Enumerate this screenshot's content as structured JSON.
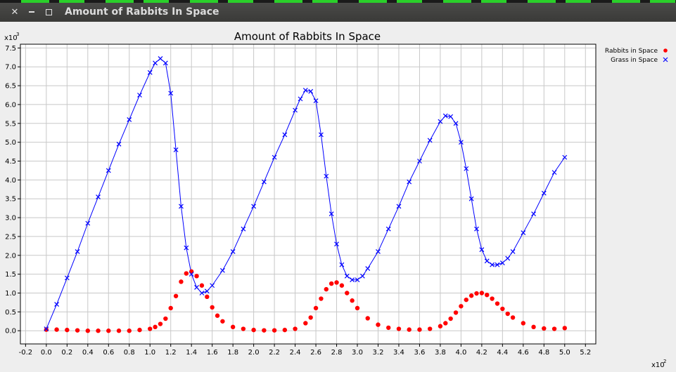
{
  "window": {
    "title": "Amount of Rabbits In Space",
    "close_icon": "close-icon",
    "minimize_icon": "minimize-icon",
    "maximize_icon": "maximize-icon"
  },
  "chart_data": {
    "type": "scatter",
    "title": "Amount of Rabbits In Space",
    "x_multiplier": "x10",
    "x_exponent": "2",
    "y_multiplier": "x10",
    "y_exponent": "3",
    "xlim": [
      -0.25,
      5.3
    ],
    "ylim": [
      -0.35,
      7.6
    ],
    "x_ticks": [
      "-0.2",
      "0.0",
      "0.2",
      "0.4",
      "0.6",
      "0.8",
      "1.0",
      "1.2",
      "1.4",
      "1.6",
      "1.8",
      "2.0",
      "2.2",
      "2.4",
      "2.6",
      "2.8",
      "3.0",
      "3.2",
      "3.4",
      "3.6",
      "3.8",
      "4.0",
      "4.2",
      "4.4",
      "4.6",
      "4.8",
      "5.0",
      "5.2"
    ],
    "y_ticks": [
      "0.0",
      "0.5",
      "1.0",
      "1.5",
      "2.0",
      "2.5",
      "3.0",
      "3.5",
      "4.0",
      "4.5",
      "5.0",
      "5.5",
      "6.0",
      "6.5",
      "7.0",
      "7.5"
    ],
    "grid": true,
    "legend_position": "right",
    "series": [
      {
        "name": "Rabbits in Space",
        "color": "#ff0000",
        "marker": "circle",
        "line": false,
        "x": [
          0.0,
          0.1,
          0.2,
          0.3,
          0.4,
          0.5,
          0.6,
          0.7,
          0.8,
          0.9,
          1.0,
          1.05,
          1.1,
          1.15,
          1.2,
          1.25,
          1.3,
          1.35,
          1.4,
          1.45,
          1.5,
          1.55,
          1.6,
          1.65,
          1.7,
          1.8,
          1.9,
          2.0,
          2.1,
          2.2,
          2.3,
          2.4,
          2.5,
          2.55,
          2.6,
          2.65,
          2.7,
          2.75,
          2.8,
          2.85,
          2.9,
          2.95,
          3.0,
          3.1,
          3.2,
          3.3,
          3.4,
          3.5,
          3.6,
          3.7,
          3.8,
          3.85,
          3.9,
          3.95,
          4.0,
          4.05,
          4.1,
          4.15,
          4.2,
          4.25,
          4.3,
          4.35,
          4.4,
          4.45,
          4.5,
          4.6,
          4.7,
          4.8,
          4.9,
          5.0
        ],
        "y": [
          0.03,
          0.03,
          0.02,
          0.01,
          0.0,
          0.0,
          0.0,
          0.0,
          0.0,
          0.02,
          0.05,
          0.1,
          0.18,
          0.32,
          0.6,
          0.92,
          1.3,
          1.52,
          1.57,
          1.45,
          1.2,
          0.9,
          0.62,
          0.4,
          0.25,
          0.1,
          0.05,
          0.02,
          0.01,
          0.01,
          0.02,
          0.05,
          0.2,
          0.35,
          0.6,
          0.85,
          1.1,
          1.25,
          1.28,
          1.2,
          1.0,
          0.8,
          0.6,
          0.33,
          0.16,
          0.08,
          0.05,
          0.03,
          0.03,
          0.05,
          0.12,
          0.2,
          0.32,
          0.48,
          0.65,
          0.82,
          0.93,
          0.99,
          1.0,
          0.95,
          0.85,
          0.72,
          0.58,
          0.45,
          0.35,
          0.2,
          0.1,
          0.06,
          0.05,
          0.07
        ]
      },
      {
        "name": "Grass in Space",
        "color": "#0000ff",
        "marker": "x",
        "line": true,
        "x": [
          0.0,
          0.1,
          0.2,
          0.3,
          0.4,
          0.5,
          0.6,
          0.7,
          0.8,
          0.9,
          1.0,
          1.05,
          1.1,
          1.15,
          1.2,
          1.25,
          1.3,
          1.35,
          1.4,
          1.45,
          1.5,
          1.55,
          1.6,
          1.7,
          1.8,
          1.9,
          2.0,
          2.1,
          2.2,
          2.3,
          2.4,
          2.45,
          2.5,
          2.55,
          2.6,
          2.65,
          2.7,
          2.75,
          2.8,
          2.85,
          2.9,
          2.95,
          3.0,
          3.05,
          3.1,
          3.2,
          3.3,
          3.4,
          3.5,
          3.6,
          3.7,
          3.8,
          3.85,
          3.9,
          3.95,
          4.0,
          4.05,
          4.1,
          4.15,
          4.2,
          4.25,
          4.3,
          4.35,
          4.4,
          4.45,
          4.5,
          4.6,
          4.7,
          4.8,
          4.9,
          5.0
        ],
        "y": [
          0.05,
          0.7,
          1.4,
          2.1,
          2.85,
          3.55,
          4.25,
          4.95,
          5.6,
          6.25,
          6.85,
          7.1,
          7.22,
          7.1,
          6.3,
          4.8,
          3.3,
          2.2,
          1.5,
          1.15,
          1.0,
          1.05,
          1.2,
          1.6,
          2.1,
          2.7,
          3.3,
          3.95,
          4.6,
          5.2,
          5.85,
          6.15,
          6.38,
          6.35,
          6.1,
          5.2,
          4.1,
          3.1,
          2.3,
          1.75,
          1.45,
          1.35,
          1.35,
          1.45,
          1.65,
          2.1,
          2.7,
          3.3,
          3.95,
          4.5,
          5.05,
          5.55,
          5.7,
          5.68,
          5.5,
          5.0,
          4.3,
          3.5,
          2.7,
          2.15,
          1.85,
          1.75,
          1.75,
          1.8,
          1.92,
          2.1,
          2.6,
          3.1,
          3.65,
          4.2,
          4.6
        ]
      }
    ]
  }
}
